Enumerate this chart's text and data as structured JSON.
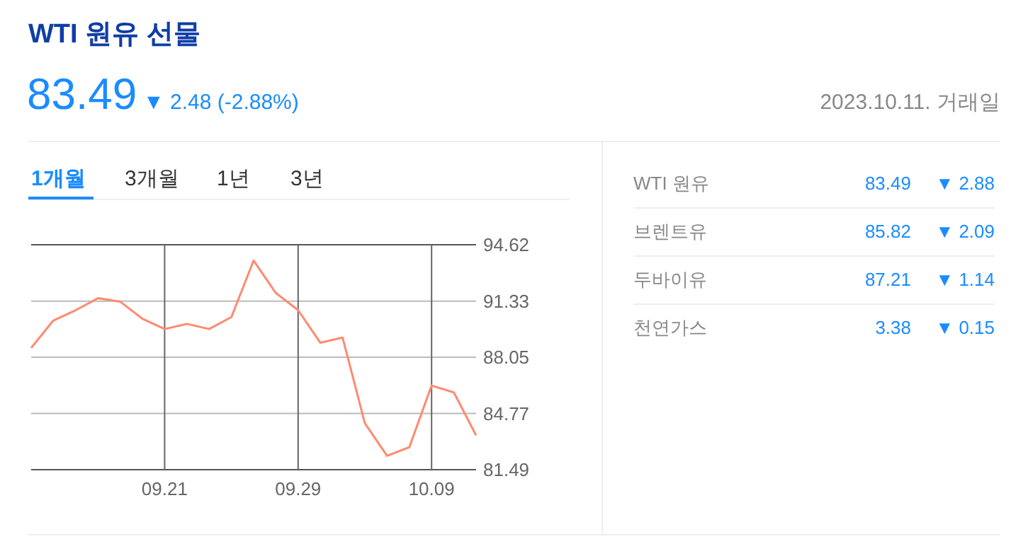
{
  "chart_data": [
    {
      "type": "line",
      "title": "WTI 원유 선물",
      "annotations": [
        "83.49",
        "▼ 2.48 (-2.88%)",
        "2023.10.11. 거래일",
        "1개월",
        "3개월",
        "1년",
        "3년"
      ],
      "categories": [
        null,
        null,
        null,
        null,
        null,
        null,
        "09.21",
        null,
        null,
        null,
        null,
        null,
        "09.29",
        null,
        null,
        null,
        null,
        null,
        "10.09",
        null,
        null
      ],
      "series": [
        {
          "color": "#ff8a70",
          "values": [
            88.6,
            90.2,
            90.8,
            91.5,
            91.3,
            90.3,
            89.7,
            90.0,
            89.7,
            90.4,
            93.7,
            91.8,
            90.8,
            88.9,
            89.2,
            84.2,
            82.3,
            82.8,
            86.4,
            86.0,
            83.49
          ]
        }
      ],
      "ylim": [
        81.49,
        94.62
      ],
      "yticks": [
        81.49,
        84.77,
        88.05,
        91.33,
        94.62
      ],
      "grid": true,
      "marker": "none",
      "line_style": "solid"
    },
    {
      "type": "other",
      "annotations": [
        "WTI 원유",
        "83.49",
        "▼ 2.88",
        "브렌트유",
        "85.82",
        "▼ 2.09",
        "두바이유",
        "87.21",
        "▼ 1.14",
        "천연가스",
        "3.38",
        "▼ 0.15"
      ]
    }
  ]
}
